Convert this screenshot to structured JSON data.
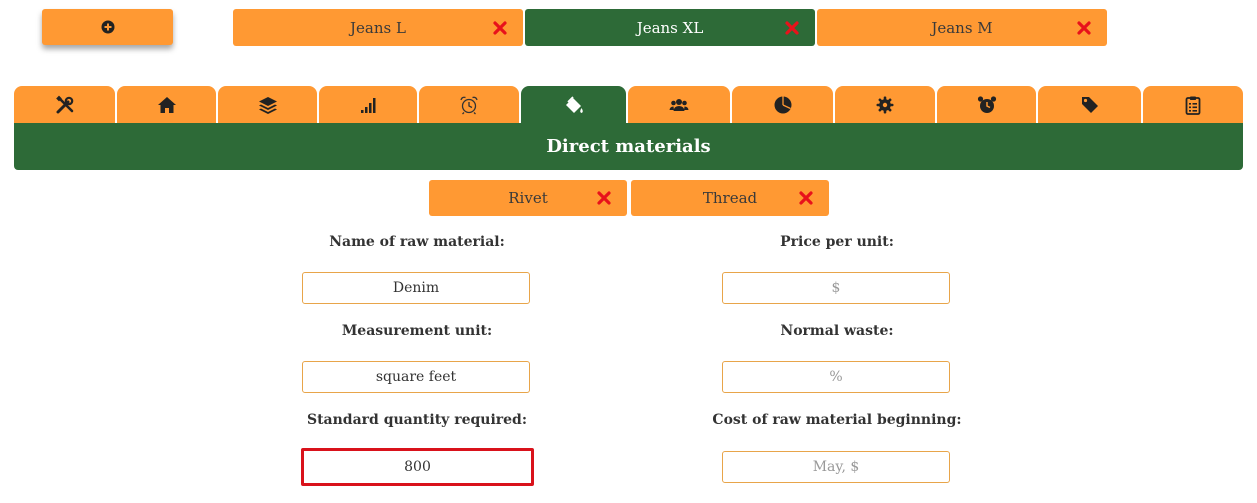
{
  "add_button": {
    "icon": "plus-circle-icon"
  },
  "products": [
    {
      "label": "Jeans L",
      "active": false
    },
    {
      "label": "Jeans XL",
      "active": true
    },
    {
      "label": "Jeans M",
      "active": false
    }
  ],
  "section_tabs": [
    {
      "icon": "tools-icon"
    },
    {
      "icon": "home-icon"
    },
    {
      "icon": "layers-icon"
    },
    {
      "icon": "signal-bars-icon"
    },
    {
      "icon": "alarm-clock-outline-icon"
    },
    {
      "icon": "paint-bucket-icon",
      "active": true
    },
    {
      "icon": "users-icon"
    },
    {
      "icon": "pie-chart-icon"
    },
    {
      "icon": "gear-icon"
    },
    {
      "icon": "alarm-clock-icon"
    },
    {
      "icon": "tags-icon"
    },
    {
      "icon": "clipboard-icon"
    }
  ],
  "section_title": "Direct materials",
  "materials": [
    {
      "label": "Rivet"
    },
    {
      "label": "Thread"
    }
  ],
  "form": {
    "name_label": "Name of raw material:",
    "name_value": "Denim",
    "price_label": "Price per unit:",
    "price_placeholder": "$",
    "unit_label": "Measurement unit:",
    "unit_value": "square feet",
    "waste_label": "Normal waste:",
    "waste_placeholder": "%",
    "qty_label": "Standard quantity required:",
    "qty_value": "800",
    "cost_label": "Cost of raw material beginning:",
    "cost_placeholder": "May, $"
  },
  "colors": {
    "orange": "#ff9933",
    "green": "#2d6a37",
    "delete_red": "#e8121b",
    "highlight_red": "#d9121b"
  }
}
